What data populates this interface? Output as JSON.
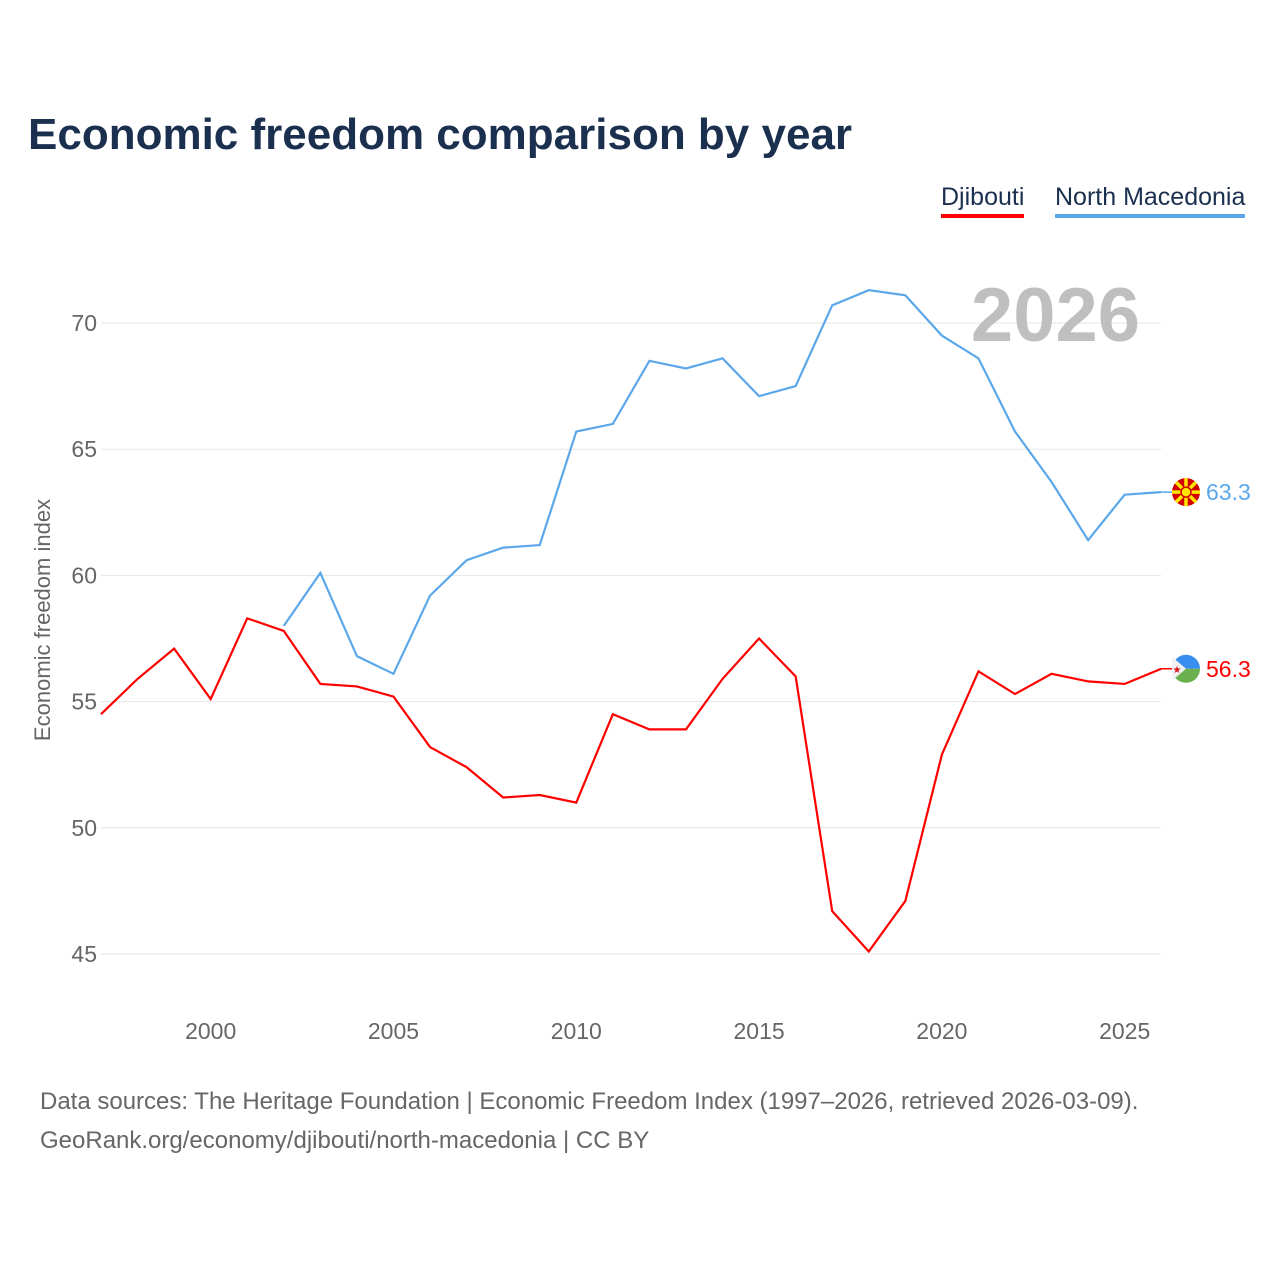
{
  "title": "Economic freedom comparison by year",
  "year_watermark": "2026",
  "sources": [
    "Data sources: The Heritage Foundation | Economic Freedom Index (1997–2026, retrieved 2026-03-09).",
    "GeoRank.org/economy/djibouti/north-macedonia | CC BY"
  ],
  "chart_data": {
    "type": "line",
    "title": "Economic freedom comparison by year",
    "xlabel": "",
    "ylabel": "Economic freedom index",
    "xlim": [
      1997,
      2026
    ],
    "ylim": [
      43,
      73
    ],
    "yticks": [
      45,
      50,
      55,
      60,
      65,
      70
    ],
    "xticks": [
      2000,
      2005,
      2010,
      2015,
      2020,
      2025
    ],
    "legend": "top-right",
    "series": [
      {
        "name": "Djibouti",
        "color": "#ff0000",
        "end_label": "56.3",
        "x": [
          1997,
          1998,
          1999,
          2000,
          2001,
          2002,
          2003,
          2004,
          2005,
          2006,
          2007,
          2008,
          2009,
          2010,
          2011,
          2012,
          2013,
          2014,
          2015,
          2016,
          2017,
          2018,
          2019,
          2020,
          2021,
          2022,
          2023,
          2024,
          2025,
          2026
        ],
        "y": [
          54.5,
          55.9,
          57.1,
          55.1,
          58.3,
          57.8,
          55.7,
          55.6,
          55.2,
          53.2,
          52.4,
          51.2,
          51.3,
          51.0,
          54.5,
          53.9,
          53.9,
          55.9,
          57.5,
          56.0,
          46.7,
          45.1,
          47.1,
          52.9,
          56.2,
          55.3,
          56.1,
          55.8,
          55.7,
          56.3
        ]
      },
      {
        "name": "North Macedonia",
        "color": "#5ba7ea",
        "end_label": "63.3",
        "x": [
          2002,
          2003,
          2004,
          2005,
          2006,
          2007,
          2008,
          2009,
          2010,
          2011,
          2012,
          2013,
          2014,
          2015,
          2016,
          2017,
          2018,
          2019,
          2020,
          2021,
          2022,
          2023,
          2024,
          2025,
          2026
        ],
        "y": [
          58.0,
          60.1,
          56.8,
          56.1,
          59.2,
          60.6,
          61.1,
          61.2,
          65.7,
          66.0,
          68.5,
          68.2,
          68.6,
          67.1,
          67.5,
          70.7,
          71.3,
          71.1,
          69.5,
          68.6,
          65.7,
          63.7,
          61.4,
          63.2,
          63.3
        ]
      }
    ]
  }
}
